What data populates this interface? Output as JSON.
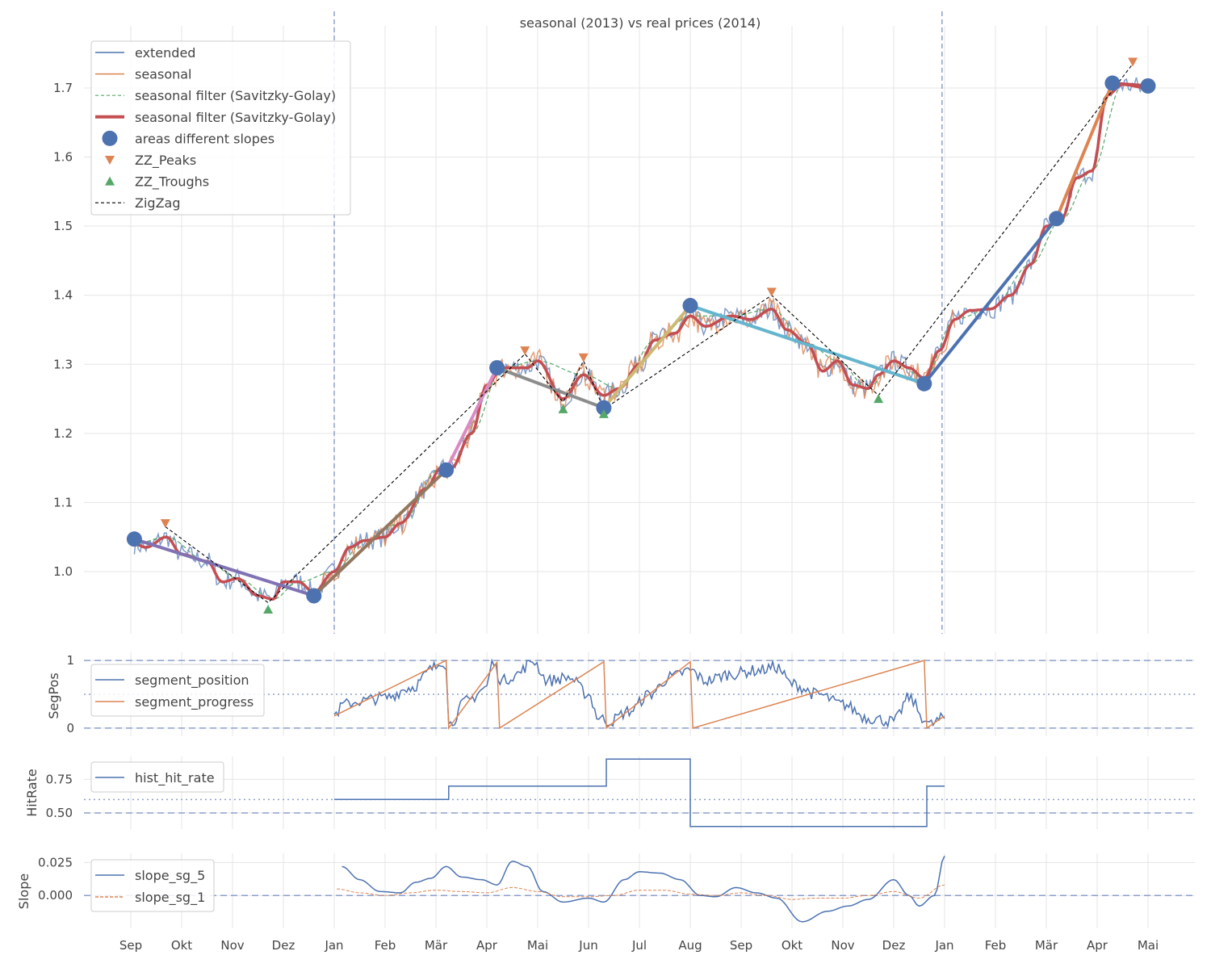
{
  "chart_data": [
    {
      "type": "line",
      "title": "seasonal (2013) vs real prices (2014)",
      "x_unit": "months since Sep 2013",
      "xticks": [
        "Sep",
        "Okt",
        "Nov",
        "Dez",
        "Jan",
        "Feb",
        "Mär",
        "Apr",
        "Mai",
        "Jun",
        "Jul",
        "Aug",
        "Sep",
        "Okt",
        "Nov",
        "Dez",
        "Jan",
        "Feb",
        "Mär",
        "Apr",
        "Mai"
      ],
      "ylim": [
        0.91,
        1.79
      ],
      "yticks": [
        "1.0",
        "1.1",
        "1.2",
        "1.3",
        "1.4",
        "1.5",
        "1.6",
        "1.7"
      ],
      "yticks_values": [
        1.0,
        1.1,
        1.2,
        1.3,
        1.4,
        1.5,
        1.6,
        1.7
      ],
      "vlines": [
        4,
        15.95
      ],
      "legend": [
        "extended",
        "seasonal",
        "seasonal filter (Savitzky-Golay)",
        "seasonal filter (Savitzky-Golay)",
        "areas different slopes",
        "ZZ_Peaks",
        "ZZ_Troughs",
        "ZigZag"
      ],
      "legend_position": "top-left",
      "smooth": [
        [
          0.07,
          1.04
        ],
        [
          0.3,
          1.035
        ],
        [
          0.7,
          1.05
        ],
        [
          1,
          1.025
        ],
        [
          1.5,
          1.015
        ],
        [
          1.8,
          0.985
        ],
        [
          2.1,
          0.99
        ],
        [
          2.5,
          0.965
        ],
        [
          2.8,
          0.96
        ],
        [
          3.0,
          0.985
        ],
        [
          3.3,
          0.985
        ],
        [
          3.6,
          0.97
        ],
        [
          4.0,
          1.0
        ],
        [
          4.3,
          1.035
        ],
        [
          4.6,
          1.045
        ],
        [
          5.0,
          1.05
        ],
        [
          5.3,
          1.07
        ],
        [
          5.8,
          1.12
        ],
        [
          6.1,
          1.15
        ],
        [
          6.3,
          1.15
        ],
        [
          6.7,
          1.2
        ],
        [
          7.0,
          1.27
        ],
        [
          7.3,
          1.295
        ],
        [
          7.8,
          1.295
        ],
        [
          8.0,
          1.305
        ],
        [
          8.5,
          1.25
        ],
        [
          8.9,
          1.285
        ],
        [
          9.3,
          1.255
        ],
        [
          9.6,
          1.265
        ],
        [
          10,
          1.3
        ],
        [
          10.3,
          1.335
        ],
        [
          10.7,
          1.345
        ],
        [
          11,
          1.37
        ],
        [
          11.3,
          1.355
        ],
        [
          11.8,
          1.37
        ],
        [
          12.2,
          1.365
        ],
        [
          12.6,
          1.38
        ],
        [
          12.9,
          1.35
        ],
        [
          13.3,
          1.33
        ],
        [
          13.6,
          1.29
        ],
        [
          13.9,
          1.305
        ],
        [
          14.2,
          1.27
        ],
        [
          14.5,
          1.265
        ],
        [
          14.7,
          1.285
        ],
        [
          15.0,
          1.305
        ],
        [
          15.3,
          1.295
        ],
        [
          15.6,
          1.28
        ],
        [
          15.9,
          1.32
        ],
        [
          16.2,
          1.365
        ],
        [
          16.5,
          1.378
        ],
        [
          16.9,
          1.38
        ],
        [
          17.3,
          1.4
        ],
        [
          17.7,
          1.445
        ],
        [
          18.0,
          1.5
        ],
        [
          18.3,
          1.51
        ],
        [
          18.6,
          1.57
        ],
        [
          18.9,
          1.58
        ],
        [
          19.2,
          1.69
        ],
        [
          19.5,
          1.705
        ],
        [
          20,
          1.7
        ]
      ],
      "areas": [
        [
          0.07,
          1.047
        ],
        [
          3.6,
          0.965
        ],
        [
          6.2,
          1.147
        ],
        [
          7.2,
          1.295
        ],
        [
          9.3,
          1.237
        ],
        [
          11.0,
          1.385
        ],
        [
          15.6,
          1.272
        ],
        [
          18.2,
          1.511
        ],
        [
          19.3,
          1.707
        ],
        [
          20.0,
          1.703
        ]
      ],
      "segment_colors": [
        "#8172b3",
        "#937860",
        "#da8bc3",
        "#8c8c8c",
        "#ccb974",
        "#64b5cd",
        "#4c72b0",
        "#dd8452",
        "#c44e52"
      ],
      "peaks": [
        [
          0.68,
          1.07
        ],
        [
          7.75,
          1.32
        ],
        [
          8.9,
          1.31
        ],
        [
          12.6,
          1.405
        ],
        [
          19.7,
          1.738
        ]
      ],
      "troughs": [
        [
          2.7,
          0.945
        ],
        [
          8.5,
          1.235
        ],
        [
          9.3,
          1.228
        ],
        [
          14.7,
          1.25
        ]
      ],
      "zigzag": [
        [
          0.68,
          1.065
        ],
        [
          2.7,
          0.955
        ],
        [
          7.75,
          1.315
        ],
        [
          8.5,
          1.245
        ],
        [
          8.9,
          1.305
        ],
        [
          9.3,
          1.235
        ],
        [
          12.6,
          1.4
        ],
        [
          14.7,
          1.255
        ],
        [
          19.7,
          1.735
        ]
      ]
    },
    {
      "type": "line",
      "ylabel": "SegPos",
      "ylim": [
        -0.12,
        1.12
      ],
      "yticks": [
        "0",
        "1"
      ],
      "yticks_values": [
        0,
        1
      ],
      "legend": [
        "segment_position",
        "segment_progress"
      ],
      "segment_position": [
        [
          4,
          0.2
        ],
        [
          4.2,
          0.35
        ],
        [
          4.5,
          0.4
        ],
        [
          5,
          0.45
        ],
        [
          5.5,
          0.6
        ],
        [
          6,
          0.9
        ],
        [
          6.1,
          1.0
        ],
        [
          6.2,
          0.95
        ],
        [
          6.25,
          0.05
        ],
        [
          6.6,
          0.4
        ],
        [
          7,
          0.6
        ],
        [
          7.1,
          0.98
        ],
        [
          7.3,
          0.7
        ],
        [
          7.6,
          0.8
        ],
        [
          7.9,
          1.0
        ],
        [
          8.2,
          0.7
        ],
        [
          8.6,
          0.75
        ],
        [
          9,
          0.5
        ],
        [
          9.2,
          0.15
        ],
        [
          9.4,
          0.1
        ],
        [
          9.8,
          0.25
        ],
        [
          10.2,
          0.5
        ],
        [
          10.6,
          0.75
        ],
        [
          11,
          0.85
        ],
        [
          11.3,
          0.7
        ],
        [
          11.8,
          0.8
        ],
        [
          12.3,
          0.85
        ],
        [
          12.7,
          0.9
        ],
        [
          13,
          0.65
        ],
        [
          13.5,
          0.5
        ],
        [
          14,
          0.35
        ],
        [
          14.5,
          0.15
        ],
        [
          15,
          0.1
        ],
        [
          15.3,
          0.45
        ],
        [
          15.6,
          0.15
        ],
        [
          15.7,
          0.05
        ],
        [
          16,
          0.15
        ]
      ],
      "segment_progress": [
        [
          4,
          0.18
        ],
        [
          6.2,
          1.0
        ],
        [
          6.25,
          0
        ],
        [
          7.2,
          0.97
        ],
        [
          7.25,
          0
        ],
        [
          9.3,
          0.98
        ],
        [
          9.35,
          0
        ],
        [
          11,
          0.98
        ],
        [
          11.05,
          0
        ],
        [
          15.6,
          1.0
        ],
        [
          15.65,
          0
        ],
        [
          16,
          0.18
        ]
      ]
    },
    {
      "type": "line",
      "ylabel": "HitRate",
      "ylim": [
        0.38,
        0.92
      ],
      "yticks": [
        "0.50",
        "0.75"
      ],
      "yticks_values": [
        0.5,
        0.75
      ],
      "legend": [
        "hist_hit_rate"
      ],
      "hist_hit_rate": [
        [
          4,
          0.6
        ],
        [
          6.25,
          0.6
        ],
        [
          6.25,
          0.7
        ],
        [
          9.35,
          0.7
        ],
        [
          9.35,
          0.9
        ],
        [
          11,
          0.9
        ],
        [
          11,
          0.4
        ],
        [
          15.65,
          0.4
        ],
        [
          15.65,
          0.7
        ],
        [
          16,
          0.7
        ]
      ]
    },
    {
      "type": "line",
      "ylabel": "Slope",
      "ylim": [
        -0.025,
        0.032
      ],
      "yticks": [
        "0.000",
        "0.025"
      ],
      "yticks_values": [
        0,
        0.025
      ],
      "legend": [
        "slope_sg_5",
        "slope_sg_1"
      ],
      "slope_sg_5": [
        [
          4.15,
          0.022
        ],
        [
          4.5,
          0.012
        ],
        [
          4.9,
          0.003
        ],
        [
          5.3,
          0.002
        ],
        [
          5.6,
          0.01
        ],
        [
          5.9,
          0.013
        ],
        [
          6.2,
          0.022
        ],
        [
          6.5,
          0.014
        ],
        [
          6.9,
          0.012
        ],
        [
          7.2,
          0.008
        ],
        [
          7.5,
          0.026
        ],
        [
          7.8,
          0.022
        ],
        [
          8.1,
          0.003
        ],
        [
          8.5,
          -0.005
        ],
        [
          9,
          -0.002
        ],
        [
          9.3,
          -0.005
        ],
        [
          9.7,
          0.012
        ],
        [
          10,
          0.018
        ],
        [
          10.4,
          0.017
        ],
        [
          10.8,
          0.012
        ],
        [
          11.2,
          0.0
        ],
        [
          11.5,
          -0.001
        ],
        [
          11.9,
          0.006
        ],
        [
          12.3,
          0.002
        ],
        [
          12.7,
          -0.002
        ],
        [
          13.2,
          -0.02
        ],
        [
          13.7,
          -0.012
        ],
        [
          14.1,
          -0.008
        ],
        [
          14.5,
          -0.003
        ],
        [
          15,
          0.012
        ],
        [
          15.3,
          0.0
        ],
        [
          15.5,
          -0.008
        ],
        [
          15.8,
          0.0
        ],
        [
          16,
          0.03
        ]
      ],
      "slope_sg_1": [
        [
          4.05,
          0.005
        ],
        [
          4.5,
          0.002
        ],
        [
          5,
          0.0
        ],
        [
          5.5,
          0.002
        ],
        [
          6,
          0.004
        ],
        [
          6.5,
          0.003
        ],
        [
          7,
          0.002
        ],
        [
          7.5,
          0.006
        ],
        [
          8,
          0.003
        ],
        [
          8.5,
          -0.001
        ],
        [
          9,
          -0.001
        ],
        [
          9.5,
          0.0
        ],
        [
          10,
          0.004
        ],
        [
          10.5,
          0.004
        ],
        [
          11,
          0.001
        ],
        [
          11.5,
          0.0
        ],
        [
          12,
          0.002
        ],
        [
          12.5,
          0.0
        ],
        [
          13,
          -0.003
        ],
        [
          13.5,
          -0.002
        ],
        [
          14,
          -0.002
        ],
        [
          14.5,
          0.0
        ],
        [
          15,
          0.003
        ],
        [
          15.5,
          -0.002
        ],
        [
          16,
          0.008
        ]
      ]
    }
  ]
}
